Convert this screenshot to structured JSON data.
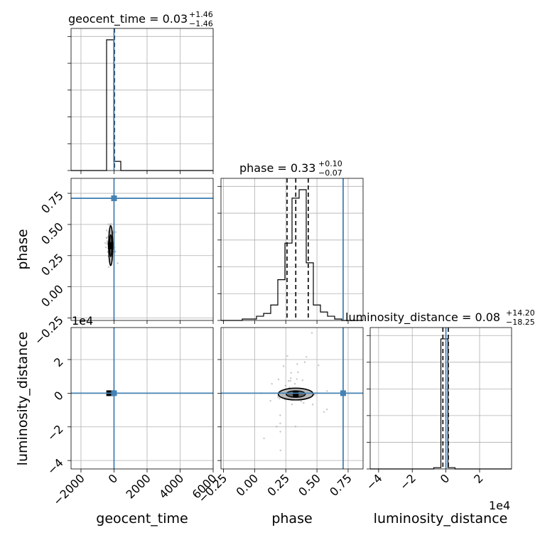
{
  "chart_data": {
    "type": "corner",
    "parameters": [
      "geocent_time",
      "phase",
      "luminosity_distance"
    ],
    "truth_color": "#4682b4",
    "truths": {
      "geocent_time": 0,
      "phase": 0.71,
      "luminosity_distance": 0
    },
    "titles": [
      {
        "param": "geocent_time",
        "text": "geocent_time = 0.03",
        "plus": "+1.46",
        "minus": "−1.46"
      },
      {
        "param": "phase",
        "text": "phase = 0.33",
        "plus": "+0.10",
        "minus": "−0.07"
      },
      {
        "param": "luminosity_distance",
        "text": "luminosity_distance = 0.08",
        "plus": "+14.20",
        "minus": "−18.25"
      }
    ],
    "axis_ranges": {
      "geocent_time": [
        -2600,
        6000
      ],
      "phase": [
        -0.27,
        0.87
      ],
      "luminosity_distance": [
        -4.5,
        3.9
      ]
    },
    "ticks": {
      "geocent_time": [
        -2000,
        0,
        2000,
        4000,
        6000
      ],
      "geocent_time_labels": [
        "−2000",
        "0",
        "2000",
        "4000",
        "6000"
      ],
      "phase": [
        -0.25,
        0,
        0.25,
        0.5,
        0.75
      ],
      "phase_labels": [
        "−0.25",
        "0.00",
        "0.25",
        "0.50",
        "0.75"
      ],
      "luminosity_distance": [
        -4,
        -2,
        0,
        2
      ],
      "luminosity_distance_labels": [
        "−4",
        "−2",
        "0",
        "2"
      ]
    },
    "offset_text": "1e4",
    "hist_geocent_time": {
      "edges": [
        -2600,
        -2170,
        -1740,
        -1310,
        -880,
        -450,
        -20,
        410,
        840,
        1270,
        1700,
        2130,
        2560,
        2990,
        3420,
        3850,
        4280,
        4710,
        5140,
        5570,
        6000
      ],
      "counts": [
        0,
        0,
        0,
        0,
        0,
        100,
        7,
        0,
        0,
        0,
        0,
        0,
        0,
        0,
        0,
        0,
        0,
        0,
        0,
        0
      ]
    },
    "hist_phase": {
      "edges": [
        -0.27,
        -0.213,
        -0.156,
        -0.099,
        -0.042,
        0.015,
        0.072,
        0.129,
        0.186,
        0.243,
        0.3,
        0.357,
        0.414,
        0.471,
        0.528,
        0.585,
        0.642,
        0.699,
        0.756,
        0.813,
        0.87
      ],
      "counts": [
        0,
        0,
        0,
        1,
        1,
        3,
        5,
        11,
        29,
        55,
        87,
        93,
        41,
        11,
        6,
        3,
        1,
        0,
        0,
        0
      ]
    },
    "phase_quantiles": [
      0.26,
      0.33,
      0.43
    ],
    "hist_luminosity_distance": {
      "edges": [
        -4.5,
        -4.08,
        -3.66,
        -3.24,
        -2.82,
        -2.4,
        -1.98,
        -1.56,
        -1.14,
        -0.72,
        -0.3,
        0.12,
        0.54,
        0.96,
        1.38,
        1.8,
        2.22,
        2.64,
        3.06,
        3.48,
        3.9
      ],
      "counts": [
        0,
        0,
        0,
        0,
        0,
        0,
        0,
        0,
        0,
        1,
        100,
        1,
        0,
        0,
        0,
        0,
        0,
        0,
        0,
        0
      ]
    },
    "luminosity_distance_quantiles": [
      -0.18,
      0.0008,
      0.14
    ],
    "scatter_geocent_phase": {
      "center": [
        -200,
        0.33
      ],
      "spread": [
        60,
        0.06
      ],
      "contour_halfwidth": [
        120,
        0.16
      ]
    },
    "scatter_phase_dist": {
      "center": [
        0.33,
        -0.05
      ],
      "spread": [
        0.07,
        0.08
      ],
      "contour_halfwidth": [
        0.14,
        0.35
      ]
    },
    "scatter_geocent_dist": {
      "center": [
        -250,
        0
      ]
    }
  }
}
